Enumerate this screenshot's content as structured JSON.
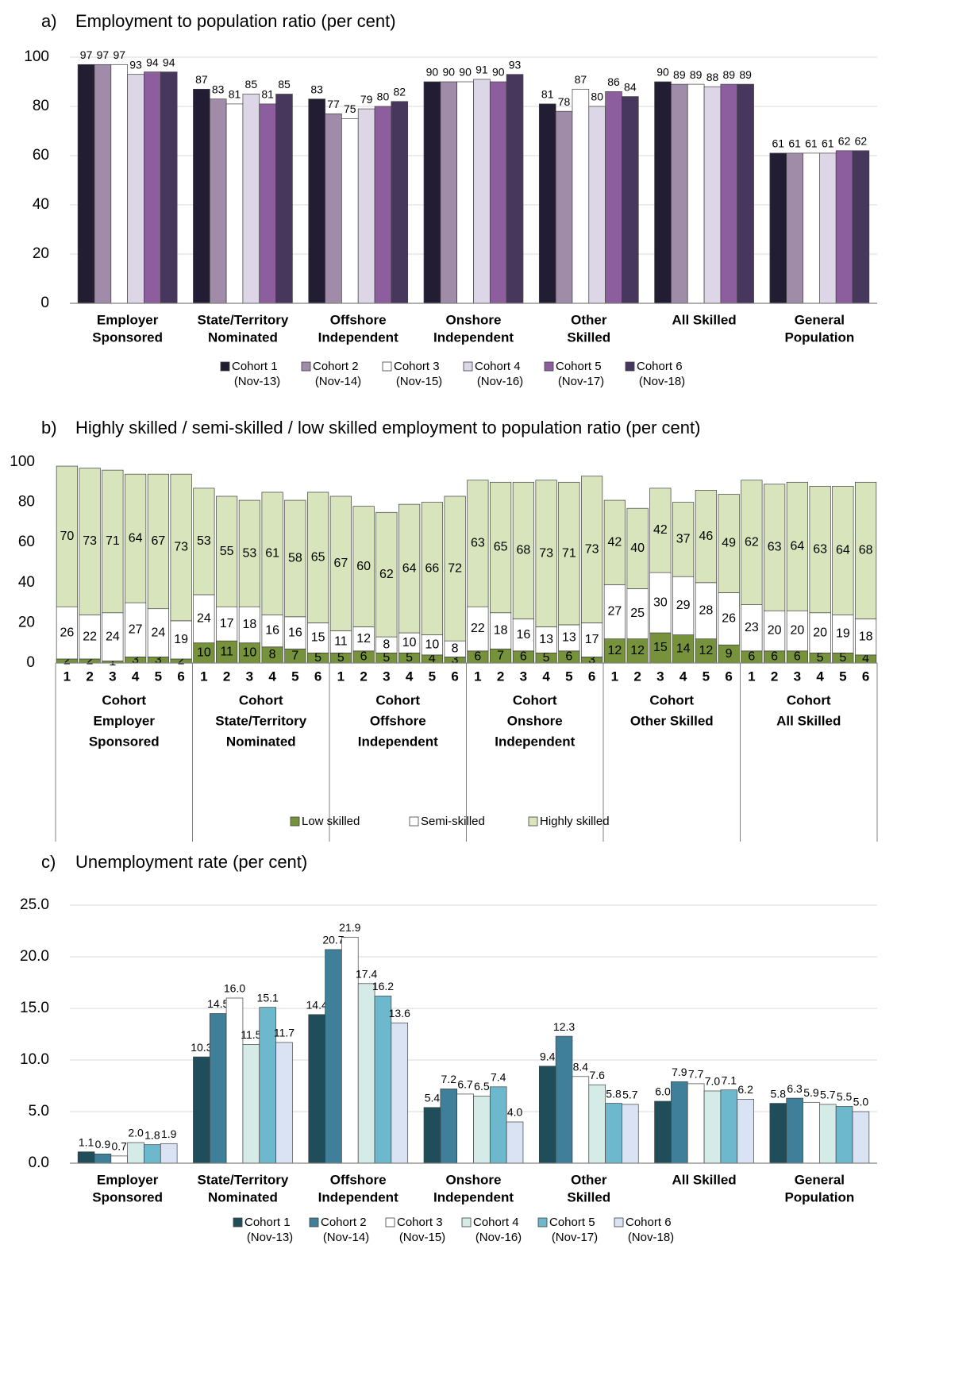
{
  "chart_data": [
    {
      "type": "bar",
      "panel": "a)",
      "title": "Employment to population ratio (per cent)",
      "categories": [
        [
          "Employer",
          "Sponsored"
        ],
        [
          "State/Territory",
          "Nominated"
        ],
        [
          "Offshore",
          "Independent"
        ],
        [
          "Onshore",
          "Independent"
        ],
        [
          "Other",
          "Skilled"
        ],
        [
          "All Skilled"
        ],
        [
          "General",
          "Population"
        ]
      ],
      "series": [
        {
          "name": [
            "Cohort 1",
            "(Nov-13)"
          ],
          "color": "#231d33",
          "values": [
            97,
            87,
            83,
            90,
            81,
            90,
            61
          ]
        },
        {
          "name": [
            "Cohort 2",
            "(Nov-14)"
          ],
          "color": "#a08ba8",
          "values": [
            97,
            83,
            77,
            90,
            78,
            89,
            61
          ]
        },
        {
          "name": [
            "Cohort 3",
            "(Nov-15)"
          ],
          "color": "#ffffff",
          "values": [
            97,
            81,
            75,
            90,
            87,
            89,
            61
          ]
        },
        {
          "name": [
            "Cohort 4",
            "(Nov-16)"
          ],
          "color": "#dcd6e6",
          "values": [
            93,
            85,
            79,
            91,
            80,
            88,
            61
          ]
        },
        {
          "name": [
            "Cohort 5",
            "(Nov-17)"
          ],
          "color": "#8c5e9e",
          "values": [
            94,
            81,
            80,
            90,
            86,
            89,
            62
          ]
        },
        {
          "name": [
            "Cohort 6",
            "(Nov-18)"
          ],
          "color": "#47375c",
          "values": [
            94,
            85,
            82,
            93,
            84,
            89,
            62
          ]
        }
      ],
      "ylim": [
        0,
        100
      ],
      "yticks": [
        0,
        20,
        40,
        60,
        80,
        100
      ],
      "grid": true,
      "legend": "bottom"
    },
    {
      "type": "stacked_bar",
      "panel": "b)",
      "title": "Highly skilled / semi-skilled / low skilled employment to population ratio (per cent)",
      "categories": [
        "1",
        "2",
        "3",
        "4",
        "5",
        "6",
        "1",
        "2",
        "3",
        "4",
        "5",
        "6",
        "1",
        "2",
        "3",
        "4",
        "5",
        "6",
        "1",
        "2",
        "3",
        "4",
        "5",
        "6",
        "1",
        "2",
        "3",
        "4",
        "5",
        "6",
        "1",
        "2",
        "3",
        "4",
        "5",
        "6"
      ],
      "groups": [
        [
          "Cohort",
          "Employer",
          "Sponsored"
        ],
        [
          "Cohort",
          "State/Territory",
          "Nominated"
        ],
        [
          "Cohort",
          "Offshore",
          "Independent"
        ],
        [
          "Cohort",
          "Onshore",
          "Independent"
        ],
        [
          "Cohort",
          "Other Skilled"
        ],
        [
          "Cohort",
          "All Skilled"
        ]
      ],
      "series": [
        {
          "name": "Low skilled",
          "color": "#76933c",
          "values": [
            2,
            2,
            1,
            3,
            3,
            2,
            10,
            11,
            10,
            8,
            7,
            5,
            5,
            6,
            5,
            5,
            4,
            3,
            6,
            7,
            6,
            5,
            6,
            3,
            12,
            12,
            15,
            14,
            12,
            9,
            6,
            6,
            6,
            5,
            5,
            4
          ]
        },
        {
          "name": "Semi-skilled",
          "color": "#ffffff",
          "values": [
            26,
            22,
            24,
            27,
            24,
            19,
            24,
            17,
            18,
            16,
            16,
            15,
            11,
            12,
            8,
            10,
            10,
            8,
            22,
            18,
            16,
            13,
            13,
            17,
            27,
            25,
            30,
            29,
            28,
            26,
            23,
            20,
            20,
            20,
            19,
            18
          ]
        },
        {
          "name": "Highly skilled",
          "color": "#d8e4bc",
          "values": [
            70,
            73,
            71,
            64,
            67,
            73,
            53,
            55,
            53,
            61,
            58,
            65,
            67,
            60,
            62,
            64,
            66,
            72,
            63,
            65,
            68,
            73,
            71,
            73,
            42,
            40,
            42,
            37,
            46,
            49,
            62,
            63,
            64,
            63,
            64,
            68
          ]
        }
      ],
      "ylim": [
        0,
        100
      ],
      "yticks": [
        0,
        20,
        40,
        60,
        80,
        100
      ],
      "grid": false,
      "legend": "bottom"
    },
    {
      "type": "bar",
      "panel": "c)",
      "title": "Unemployment rate (per cent)",
      "categories": [
        [
          "Employer",
          "Sponsored"
        ],
        [
          "State/Territory",
          "Nominated"
        ],
        [
          "Offshore",
          "Independent"
        ],
        [
          "Onshore",
          "Independent"
        ],
        [
          "Other",
          "Skilled"
        ],
        [
          "All Skilled"
        ],
        [
          "General",
          "Population"
        ]
      ],
      "series": [
        {
          "name": [
            "Cohort 1",
            "(Nov-13)"
          ],
          "color": "#1f4e5a",
          "values": [
            1.1,
            10.3,
            14.4,
            5.4,
            9.4,
            6.0,
            5.8
          ],
          "value_labels": [
            "1.1",
            "10.3",
            "14.4",
            "5.4",
            "9.4",
            "6.0",
            "5.8"
          ]
        },
        {
          "name": [
            "Cohort 2",
            "(Nov-14)"
          ],
          "color": "#3f7f99",
          "values": [
            0.9,
            14.5,
            20.7,
            7.2,
            12.3,
            7.9,
            6.3
          ],
          "value_labels": [
            "0.9",
            "14.5",
            "20.7",
            "7.2",
            "12.3",
            "7.9",
            "6.3"
          ]
        },
        {
          "name": [
            "Cohort 3",
            "(Nov-15)"
          ],
          "color": "#ffffff",
          "values": [
            0.7,
            16.0,
            21.9,
            6.7,
            8.4,
            7.7,
            5.9
          ],
          "value_labels": [
            "0.7",
            "16.0",
            "21.9",
            "6.7",
            "8.4",
            "7.7",
            "5.9"
          ]
        },
        {
          "name": [
            "Cohort 4",
            "(Nov-16)"
          ],
          "color": "#d5ebe8",
          "values": [
            2.0,
            11.5,
            17.4,
            6.5,
            7.6,
            7.0,
            5.7
          ],
          "value_labels": [
            "2.0",
            "11.5",
            "17.4",
            "6.5",
            "7.6",
            "7.0",
            "5.7"
          ]
        },
        {
          "name": [
            "Cohort 5",
            "(Nov-17)"
          ],
          "color": "#6db8cc",
          "values": [
            1.8,
            15.1,
            16.2,
            7.4,
            5.8,
            7.1,
            5.5
          ],
          "value_labels": [
            "1.8",
            "15.1",
            "16.2",
            "7.4",
            "5.8",
            "7.1",
            "5.5"
          ]
        },
        {
          "name": [
            "Cohort 6",
            "(Nov-18)"
          ],
          "color": "#dae3f3",
          "values": [
            1.9,
            11.7,
            13.6,
            4.0,
            5.7,
            6.2,
            5.0
          ],
          "value_labels": [
            "1.9",
            "11.7",
            "13.6",
            "4.0",
            "5.7",
            "6.2",
            "5.0"
          ]
        }
      ],
      "ylim": [
        0,
        25
      ],
      "yticks": [
        {
          "value": 0,
          "label": "0.0"
        },
        {
          "value": 5,
          "label": "5.0"
        },
        {
          "value": 10,
          "label": "10.0"
        },
        {
          "value": 15,
          "label": "15.0"
        },
        {
          "value": 20,
          "label": "20.0"
        },
        {
          "value": 25,
          "label": "25.0"
        }
      ],
      "grid": true,
      "legend": "bottom"
    }
  ]
}
